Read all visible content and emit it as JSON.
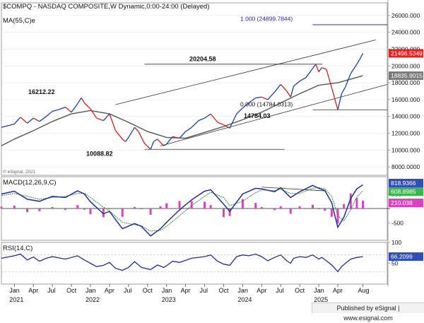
{
  "chart_data": {
    "type": "line",
    "symbol": "$COMPQ - NASDAQ COMPOSITE,W",
    "mode": "Dynamic,0:00-24:00 (Delayed)",
    "ma_label": "MA(55,C)e",
    "watermark": "© eSignal, 2021",
    "price_axis": [
      8000,
      10000,
      12000,
      14000,
      16000,
      18000,
      20000,
      22000,
      24000,
      26000
    ],
    "price_axis_labels": [
      "8000.0000",
      "10000.000",
      "12000.000",
      "14000.000",
      "16000.000",
      "18000.000",
      "20000.000",
      "22000.000",
      "24000.000",
      "26000.000"
    ],
    "price_ylim": [
      7000,
      27500
    ],
    "current_price": 21496.5349,
    "current_price_label": "21496.5349",
    "ma_value": 18835.9015,
    "ma_label_value": "18835.9015",
    "time_axis": [
      "Jan",
      "Apr",
      "Jul",
      "Oct",
      "Jan",
      "Apr",
      "Jul",
      "Oct",
      "Jan",
      "Apr",
      "Jul",
      "Oct",
      "Jan",
      "Apr",
      "Jul",
      "Oct",
      "Jan",
      "Apr",
      "Aug"
    ],
    "years": [
      "2021",
      "2022",
      "2023",
      "2024",
      "2025"
    ],
    "price_series": [
      [
        2020.83,
        12700
      ],
      [
        2020.92,
        12900
      ],
      [
        2021.0,
        13100
      ],
      [
        2021.08,
        13900
      ],
      [
        2021.17,
        13200
      ],
      [
        2021.25,
        13800
      ],
      [
        2021.33,
        13400
      ],
      [
        2021.42,
        14000
      ],
      [
        2021.5,
        14600
      ],
      [
        2021.58,
        14800
      ],
      [
        2021.67,
        15100
      ],
      [
        2021.75,
        14500
      ],
      [
        2021.83,
        15500
      ],
      [
        2021.88,
        16212
      ],
      [
        2021.92,
        15600
      ],
      [
        2022.0,
        14900
      ],
      [
        2022.08,
        13800
      ],
      [
        2022.17,
        13500
      ],
      [
        2022.25,
        14300
      ],
      [
        2022.33,
        12300
      ],
      [
        2022.42,
        11300
      ],
      [
        2022.46,
        11000
      ],
      [
        2022.5,
        11500
      ],
      [
        2022.58,
        12700
      ],
      [
        2022.63,
        12200
      ],
      [
        2022.71,
        10800
      ],
      [
        2022.79,
        10089
      ],
      [
        2022.83,
        11000
      ],
      [
        2022.88,
        11300
      ],
      [
        2022.96,
        10500
      ],
      [
        2023.0,
        10700
      ],
      [
        2023.08,
        11600
      ],
      [
        2023.17,
        11400
      ],
      [
        2023.25,
        12200
      ],
      [
        2023.33,
        12700
      ],
      [
        2023.42,
        13500
      ],
      [
        2023.5,
        13800
      ],
      [
        2023.58,
        14300
      ],
      [
        2023.67,
        13300
      ],
      [
        2023.75,
        13000
      ],
      [
        2023.83,
        12600
      ],
      [
        2023.92,
        14300
      ],
      [
        2024.0,
        15000
      ],
      [
        2024.08,
        15600
      ],
      [
        2024.17,
        16200
      ],
      [
        2024.25,
        16300
      ],
      [
        2024.33,
        16000
      ],
      [
        2024.42,
        16900
      ],
      [
        2024.5,
        17800
      ],
      [
        2024.58,
        17000
      ],
      [
        2024.63,
        16300
      ],
      [
        2024.67,
        17600
      ],
      [
        2024.75,
        18200
      ],
      [
        2024.83,
        18600
      ],
      [
        2024.92,
        19700
      ],
      [
        2024.96,
        20205
      ],
      [
        2025.0,
        19300
      ],
      [
        2025.04,
        19800
      ],
      [
        2025.1,
        19600
      ],
      [
        2025.17,
        17400
      ],
      [
        2025.25,
        14784
      ],
      [
        2025.3,
        16700
      ],
      [
        2025.35,
        17500
      ],
      [
        2025.42,
        19100
      ],
      [
        2025.5,
        20200
      ],
      [
        2025.54,
        20800
      ],
      [
        2025.58,
        21500
      ]
    ],
    "ma_series": [
      [
        2020.83,
        10500
      ],
      [
        2021.0,
        11300
      ],
      [
        2021.25,
        12300
      ],
      [
        2021.5,
        13400
      ],
      [
        2021.75,
        14300
      ],
      [
        2022.0,
        14700
      ],
      [
        2022.25,
        14300
      ],
      [
        2022.5,
        13300
      ],
      [
        2022.75,
        12200
      ],
      [
        2023.0,
        11500
      ],
      [
        2023.25,
        11400
      ],
      [
        2023.5,
        12100
      ],
      [
        2023.75,
        12800
      ],
      [
        2024.0,
        13600
      ],
      [
        2024.25,
        14500
      ],
      [
        2024.5,
        15600
      ],
      [
        2024.75,
        16700
      ],
      [
        2025.0,
        17700
      ],
      [
        2025.25,
        18000
      ],
      [
        2025.58,
        18836
      ]
    ],
    "annotations": {
      "peak_2021": "16212.22",
      "low_2022": "10088.82",
      "peak_2024": "20204.58",
      "low_2025": "14784.03",
      "fib_100": "1.000 (24899.7844)",
      "fib_000": "0.000 (14784.0313)"
    },
    "levels": {
      "fib_100": 24899.7844,
      "fib_000": 14784.0313,
      "peak_2024": 20204.58,
      "low_2022": 10088.82
    },
    "macd": {
      "label": "MACD(12,26,9,C)",
      "values_label": [
        "818.9366",
        "608.8985",
        "210.038"
      ],
      "axis": [
        "500",
        "-500"
      ],
      "macd_series": [
        [
          2020.83,
          500
        ],
        [
          2021.0,
          600
        ],
        [
          2021.17,
          320
        ],
        [
          2021.33,
          250
        ],
        [
          2021.5,
          420
        ],
        [
          2021.67,
          380
        ],
        [
          2021.83,
          610
        ],
        [
          2021.92,
          500
        ],
        [
          2022.0,
          230
        ],
        [
          2022.17,
          -180
        ],
        [
          2022.25,
          -100
        ],
        [
          2022.42,
          -700
        ],
        [
          2022.58,
          -520
        ],
        [
          2022.67,
          -620
        ],
        [
          2022.79,
          -950
        ],
        [
          2022.92,
          -700
        ],
        [
          2023.0,
          -480
        ],
        [
          2023.17,
          -50
        ],
        [
          2023.33,
          300
        ],
        [
          2023.5,
          600
        ],
        [
          2023.58,
          650
        ],
        [
          2023.75,
          150
        ],
        [
          2023.83,
          -100
        ],
        [
          2024.0,
          500
        ],
        [
          2024.17,
          700
        ],
        [
          2024.25,
          680
        ],
        [
          2024.42,
          580
        ],
        [
          2024.5,
          720
        ],
        [
          2024.63,
          380
        ],
        [
          2024.75,
          580
        ],
        [
          2024.92,
          800
        ],
        [
          2025.0,
          700
        ],
        [
          2025.08,
          620
        ],
        [
          2025.17,
          200
        ],
        [
          2025.25,
          -650
        ],
        [
          2025.33,
          -300
        ],
        [
          2025.42,
          350
        ],
        [
          2025.5,
          680
        ],
        [
          2025.58,
          819
        ]
      ],
      "signal_series": [
        [
          2020.83,
          450
        ],
        [
          2021.0,
          520
        ],
        [
          2021.17,
          420
        ],
        [
          2021.33,
          320
        ],
        [
          2021.5,
          380
        ],
        [
          2021.67,
          420
        ],
        [
          2021.83,
          520
        ],
        [
          2021.92,
          530
        ],
        [
          2022.0,
          380
        ],
        [
          2022.17,
          50
        ],
        [
          2022.25,
          -80
        ],
        [
          2022.42,
          -480
        ],
        [
          2022.58,
          -560
        ],
        [
          2022.67,
          -600
        ],
        [
          2022.79,
          -780
        ],
        [
          2022.92,
          -760
        ],
        [
          2023.0,
          -620
        ],
        [
          2023.17,
          -250
        ],
        [
          2023.33,
          100
        ],
        [
          2023.5,
          420
        ],
        [
          2023.58,
          560
        ],
        [
          2023.75,
          380
        ],
        [
          2023.83,
          100
        ],
        [
          2024.0,
          250
        ],
        [
          2024.17,
          550
        ],
        [
          2024.25,
          640
        ],
        [
          2024.42,
          620
        ],
        [
          2024.5,
          660
        ],
        [
          2024.63,
          520
        ],
        [
          2024.75,
          520
        ],
        [
          2024.92,
          700
        ],
        [
          2025.0,
          720
        ],
        [
          2025.08,
          680
        ],
        [
          2025.17,
          420
        ],
        [
          2025.25,
          -250
        ],
        [
          2025.33,
          -420
        ],
        [
          2025.42,
          -50
        ],
        [
          2025.5,
          400
        ],
        [
          2025.58,
          609
        ]
      ],
      "ylim": [
        -1100,
        1100
      ],
      "divergence_line": [
        [
          2024.25,
          740
        ],
        [
          2025.08,
          610
        ]
      ]
    },
    "rsi": {
      "label": "RSI(14,C)",
      "value_label": "66.2099",
      "axis": [
        "100",
        "50"
      ],
      "levels": [
        70,
        30
      ],
      "ylim": [
        0,
        100
      ],
      "series": [
        [
          2020.83,
          62
        ],
        [
          2021.0,
          68
        ],
        [
          2021.08,
          72
        ],
        [
          2021.17,
          58
        ],
        [
          2021.25,
          65
        ],
        [
          2021.33,
          55
        ],
        [
          2021.42,
          62
        ],
        [
          2021.5,
          66
        ],
        [
          2021.67,
          60
        ],
        [
          2021.83,
          68
        ],
        [
          2021.92,
          58
        ],
        [
          2022.0,
          50
        ],
        [
          2022.08,
          42
        ],
        [
          2022.17,
          45
        ],
        [
          2022.25,
          52
        ],
        [
          2022.33,
          38
        ],
        [
          2022.42,
          33
        ],
        [
          2022.5,
          40
        ],
        [
          2022.58,
          54
        ],
        [
          2022.67,
          40
        ],
        [
          2022.79,
          35
        ],
        [
          2022.88,
          46
        ],
        [
          2022.96,
          40
        ],
        [
          2023.0,
          44
        ],
        [
          2023.08,
          55
        ],
        [
          2023.17,
          52
        ],
        [
          2023.33,
          62
        ],
        [
          2023.5,
          66
        ],
        [
          2023.58,
          70
        ],
        [
          2023.67,
          55
        ],
        [
          2023.75,
          48
        ],
        [
          2023.83,
          45
        ],
        [
          2023.92,
          66
        ],
        [
          2024.0,
          70
        ],
        [
          2024.08,
          68
        ],
        [
          2024.17,
          72
        ],
        [
          2024.25,
          66
        ],
        [
          2024.33,
          56
        ],
        [
          2024.42,
          64
        ],
        [
          2024.5,
          70
        ],
        [
          2024.58,
          56
        ],
        [
          2024.63,
          50
        ],
        [
          2024.67,
          62
        ],
        [
          2024.75,
          66
        ],
        [
          2024.83,
          64
        ],
        [
          2024.92,
          70
        ],
        [
          2025.0,
          60
        ],
        [
          2025.04,
          64
        ],
        [
          2025.1,
          56
        ],
        [
          2025.17,
          46
        ],
        [
          2025.25,
          30
        ],
        [
          2025.3,
          42
        ],
        [
          2025.35,
          50
        ],
        [
          2025.42,
          60
        ],
        [
          2025.5,
          64
        ],
        [
          2025.58,
          66
        ]
      ]
    },
    "colors": {
      "price": "#222222",
      "up": "#1a3fb0",
      "down": "#d41d1d",
      "ma": "#555555",
      "macd_line": "#1f2f96",
      "signal_line": "#2e8b2e",
      "histogram": "#e040c0",
      "rsi": "#1f2f96",
      "fib": "#2a2aa0",
      "current_box": "#e52222",
      "macd_box": "#2f4fb8",
      "signal_box": "#3ab84a"
    }
  },
  "footer": "Published by eSignal | www.esignal.com"
}
